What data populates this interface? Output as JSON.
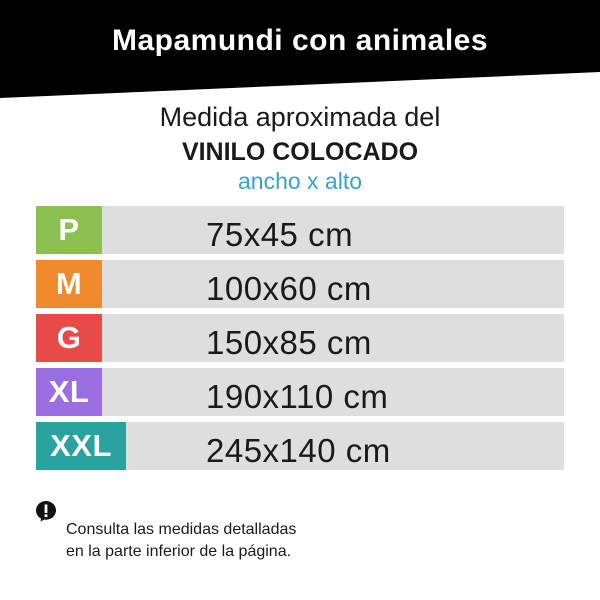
{
  "header": {
    "title": "Mapamundi con animales"
  },
  "subtitle": {
    "line1": "Medida aproximada del",
    "line2": "VINILO COLOCADO",
    "line3": "ancho x alto",
    "line3_color": "#3aa3c8"
  },
  "sizes": [
    {
      "code": "P",
      "dimensions": "75x45 cm",
      "color": "#8cc152"
    },
    {
      "code": "M",
      "dimensions": "100x60 cm",
      "color": "#f08a2c"
    },
    {
      "code": "G",
      "dimensions": "150x85 cm",
      "color": "#e84b47"
    },
    {
      "code": "XL",
      "dimensions": "190x110 cm",
      "color": "#9b6ee2"
    },
    {
      "code": "XXL",
      "dimensions": "245x140 cm",
      "color": "#2aa3a0"
    }
  ],
  "note": {
    "icon": "info-icon",
    "line1": "Consulta las medidas detalladas",
    "line2": "en la parte inferior de la página."
  },
  "colors": {
    "header_bg": "#000000",
    "row_bg": "#dedede"
  }
}
